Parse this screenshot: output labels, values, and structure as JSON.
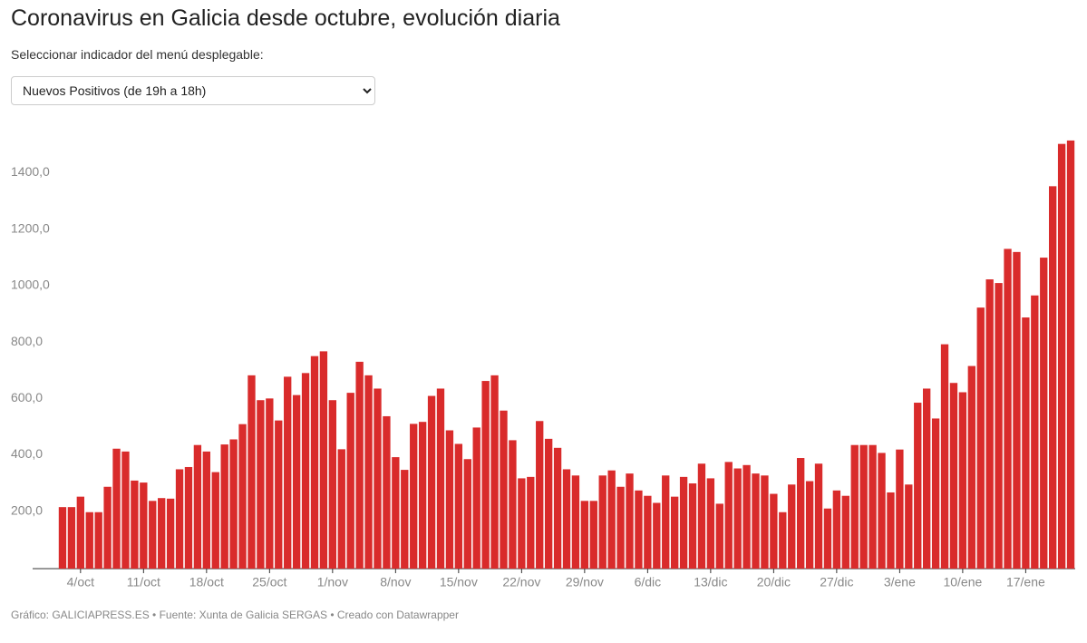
{
  "header": {
    "title": "Coronavirus en Galicia desde octubre, evolución diaria",
    "prompt": "Seleccionar indicador del menú desplegable:",
    "dropdown": "Nuevos Positivos (de 19h a 18h)"
  },
  "chart_data": {
    "type": "bar",
    "color": "#d92b2b",
    "categories": [
      null,
      null,
      "4/oct",
      null,
      null,
      null,
      null,
      null,
      null,
      "11/oct",
      null,
      null,
      null,
      null,
      null,
      null,
      "18/oct",
      null,
      null,
      null,
      null,
      null,
      null,
      "25/oct",
      null,
      null,
      null,
      null,
      null,
      null,
      "1/nov",
      null,
      null,
      null,
      null,
      null,
      null,
      "8/nov",
      null,
      null,
      null,
      null,
      null,
      null,
      "15/nov",
      null,
      null,
      null,
      null,
      null,
      null,
      "22/nov",
      null,
      null,
      null,
      null,
      null,
      null,
      "29/nov",
      null,
      null,
      null,
      null,
      null,
      null,
      "6/dic",
      null,
      null,
      null,
      null,
      null,
      null,
      "13/dic",
      null,
      null,
      null,
      null,
      null,
      null,
      "20/dic",
      null,
      null,
      null,
      null,
      null,
      null,
      "27/dic",
      null,
      null,
      null,
      null,
      null,
      null,
      "3/ene",
      null,
      null,
      null,
      null,
      null,
      null,
      "10/ene",
      null,
      null,
      null,
      null,
      null,
      null,
      "17/ene",
      null,
      null,
      null,
      null,
      null
    ],
    "values": [
      218,
      218,
      255,
      200,
      200,
      290,
      425,
      415,
      312,
      305,
      240,
      250,
      248,
      352,
      360,
      438,
      415,
      342,
      440,
      458,
      512,
      685,
      597,
      603,
      525,
      680,
      615,
      693,
      753,
      770,
      597,
      423,
      623,
      733,
      685,
      638,
      540,
      395,
      350,
      513,
      520,
      612,
      638,
      490,
      442,
      388,
      500,
      665,
      685,
      560,
      455,
      320,
      325,
      523,
      460,
      428,
      352,
      330,
      240,
      240,
      330,
      348,
      290,
      337,
      277,
      258,
      233,
      330,
      255,
      325,
      302,
      372,
      320,
      230,
      378,
      355,
      367,
      337,
      330,
      265,
      200,
      298,
      392,
      310,
      372,
      213,
      277,
      258,
      438,
      438,
      438,
      410,
      270,
      422,
      298,
      588,
      638,
      532,
      795,
      658,
      625,
      718,
      925,
      1025,
      1012,
      1133,
      1122,
      890,
      968,
      1102,
      1355,
      1505,
      1517
    ],
    "ylim": [
      0,
      1520
    ],
    "yticks": [
      {
        "value": 200,
        "label": "200,0"
      },
      {
        "value": 400,
        "label": "400,0"
      },
      {
        "value": 600,
        "label": "600,0"
      },
      {
        "value": 800,
        "label": "800,0"
      },
      {
        "value": 1000,
        "label": "1000,0"
      },
      {
        "value": 1200,
        "label": "1200,0"
      },
      {
        "value": 1400,
        "label": "1400,0"
      }
    ],
    "grid": false
  },
  "footer": "Gráfico: GALICIAPRESS.ES • Fuente: Xunta de Galicia SERGAS • Creado con Datawrapper"
}
